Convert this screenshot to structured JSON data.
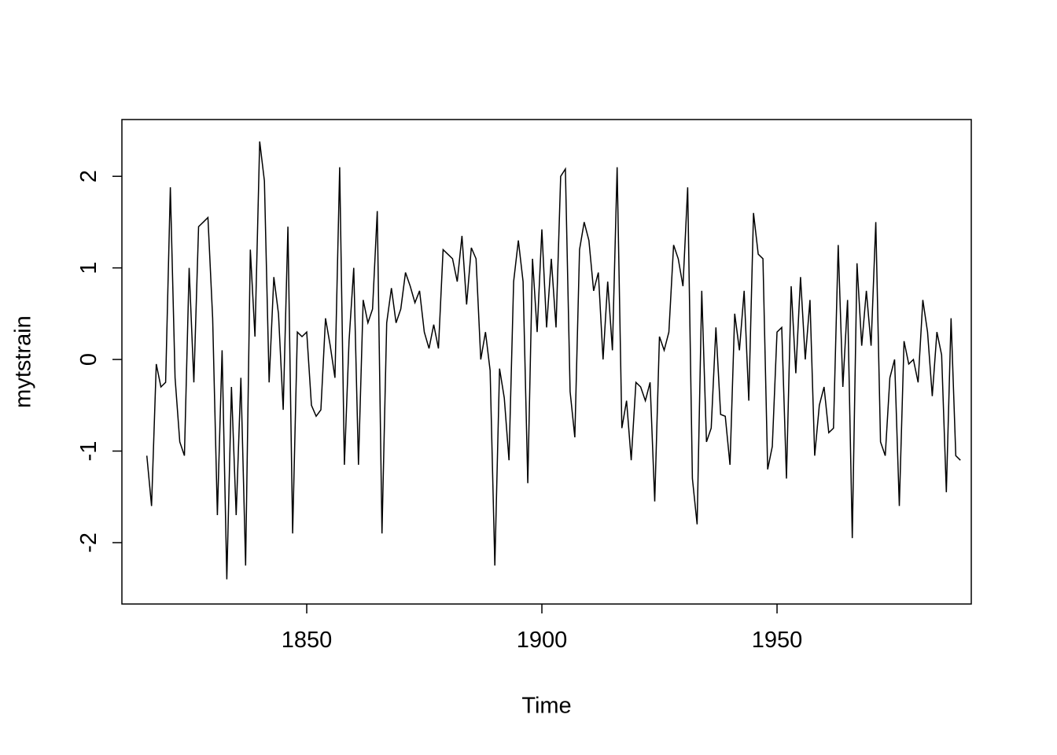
{
  "chart_data": {
    "type": "line",
    "title": "",
    "xlabel": "Time",
    "ylabel": "mytstrain",
    "line_color": "#000000",
    "background_color": "#ffffff",
    "legend": "none",
    "grid": false,
    "x_start": 1816,
    "x_step": 1,
    "xlim": [
      1810.7,
      1991.3
    ],
    "ylim": [
      -2.67,
      2.62
    ],
    "x_ticks": [
      1850,
      1900,
      1950
    ],
    "y_ticks": [
      -2,
      -1,
      0,
      1,
      2
    ],
    "values": [
      -1.05,
      -1.6,
      -0.05,
      -0.3,
      -0.25,
      1.88,
      -0.2,
      -0.9,
      -1.05,
      1.0,
      -0.25,
      1.45,
      1.5,
      1.55,
      0.45,
      -1.7,
      0.1,
      -2.4,
      -0.3,
      -1.7,
      -0.2,
      -2.25,
      1.2,
      0.25,
      2.38,
      1.95,
      -0.25,
      0.9,
      0.5,
      -0.55,
      1.45,
      -1.9,
      0.3,
      0.25,
      0.3,
      -0.5,
      -0.62,
      -0.55,
      0.45,
      0.15,
      -0.2,
      2.1,
      -1.15,
      0.2,
      1.0,
      -1.15,
      0.65,
      0.4,
      0.55,
      1.62,
      -1.9,
      0.4,
      0.78,
      0.4,
      0.55,
      0.95,
      0.8,
      0.62,
      0.75,
      0.3,
      0.12,
      0.38,
      0.12,
      1.2,
      1.15,
      1.1,
      0.85,
      1.35,
      0.6,
      1.22,
      1.1,
      0.0,
      0.3,
      -0.12,
      -2.25,
      -0.1,
      -0.42,
      -1.1,
      0.85,
      1.3,
      0.85,
      -1.35,
      1.1,
      0.3,
      1.42,
      0.35,
      1.1,
      0.35,
      2.0,
      2.08,
      -0.35,
      -0.85,
      1.2,
      1.5,
      1.3,
      0.75,
      0.95,
      0.0,
      0.85,
      0.1,
      2.1,
      -0.75,
      -0.45,
      -1.1,
      -0.25,
      -0.3,
      -0.45,
      -0.25,
      -1.55,
      0.25,
      0.1,
      0.3,
      1.25,
      1.1,
      0.8,
      1.88,
      -1.3,
      -1.8,
      0.75,
      -0.9,
      -0.75,
      0.35,
      -0.6,
      -0.62,
      -1.15,
      0.5,
      0.1,
      0.75,
      -0.45,
      1.6,
      1.15,
      1.1,
      -1.2,
      -0.95,
      0.3,
      0.35,
      -1.3,
      0.8,
      -0.15,
      0.9,
      0.0,
      0.65,
      -1.05,
      -0.5,
      -0.3,
      -0.8,
      -0.75,
      1.25,
      -0.3,
      0.65,
      -1.95,
      1.05,
      0.15,
      0.75,
      0.15,
      1.5,
      -0.9,
      -1.05,
      -0.2,
      0.0,
      -1.6,
      0.2,
      -0.05,
      0.0,
      -0.25,
      0.65,
      0.3,
      -0.4,
      0.3,
      0.05,
      -1.45,
      0.45,
      -1.05,
      -1.1
    ]
  }
}
